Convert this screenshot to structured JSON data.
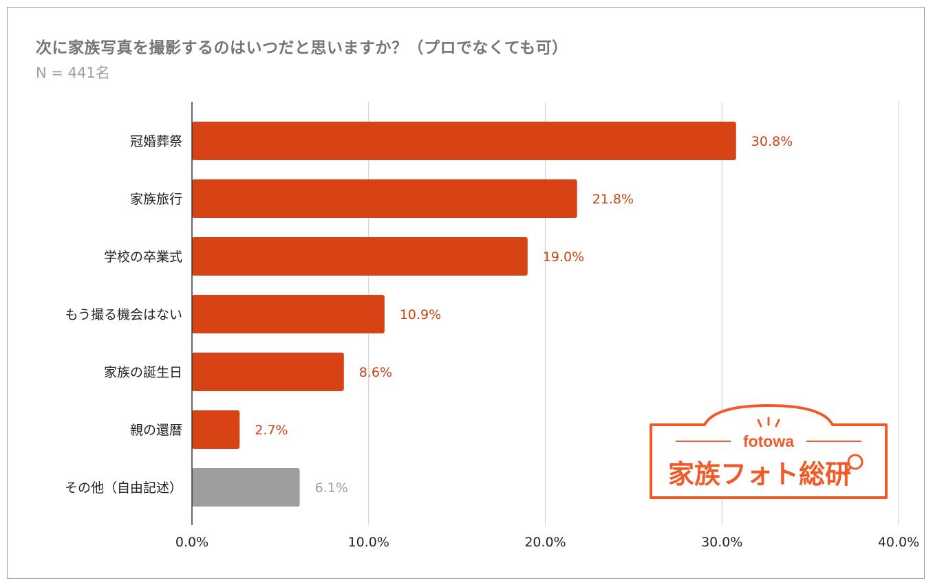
{
  "chart_data": {
    "type": "bar",
    "orientation": "horizontal",
    "title": "次に家族写真を撮影するのはいつだと思いますか？（プロでなくても可）",
    "subtitle": "N = 441名",
    "categories": [
      "冠婚葬祭",
      "家族旅行",
      "学校の卒業式",
      "もう撮る機会はない",
      "家族の誕生日",
      "親の還暦",
      "その他（自由記述）"
    ],
    "values": [
      30.8,
      21.8,
      19.0,
      10.9,
      8.6,
      2.7,
      6.1
    ],
    "value_labels": [
      "30.8%",
      "21.8%",
      "19.0%",
      "10.9%",
      "8.6%",
      "2.7%",
      "6.1%"
    ],
    "bar_colors": [
      "#d84315",
      "#d84315",
      "#d84315",
      "#d84315",
      "#d84315",
      "#d84315",
      "#9e9e9e"
    ],
    "label_colors": [
      "#c84315",
      "#c84315",
      "#c84315",
      "#c84315",
      "#c84315",
      "#c84315",
      "#9e9e9e"
    ],
    "xlim": [
      0,
      40
    ],
    "xticks": [
      0,
      10,
      20,
      30,
      40
    ],
    "xtick_labels": [
      "0.0%",
      "10.0%",
      "20.0%",
      "30.0%",
      "40.0%"
    ],
    "grid": true,
    "legend": "none"
  },
  "logo": {
    "brand": "fotowa",
    "name": "家族フォト総研",
    "color": "#f05a28"
  }
}
